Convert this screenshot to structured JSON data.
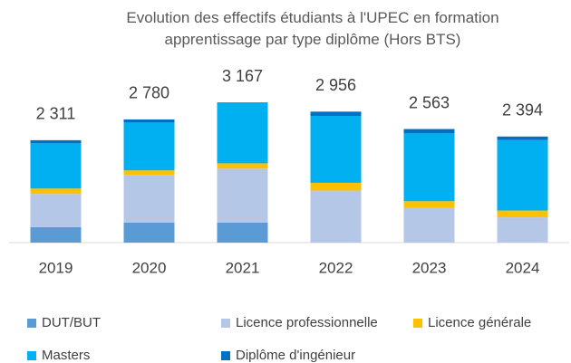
{
  "chart_data": {
    "type": "stacked_bar",
    "title": "Evolution des effectifs étudiants à l'UPEC en formation apprentissage par type diplôme (Hors BTS)",
    "categories": [
      "2019",
      "2020",
      "2021",
      "2022",
      "2023",
      "2024"
    ],
    "series": [
      {
        "name": "DUT/BUT",
        "color": "#5b9bd5",
        "values": [
          350,
          450,
          450,
          0,
          0,
          0
        ]
      },
      {
        "name": "Licence professionnelle",
        "color": "#b4c7e7",
        "values": [
          750,
          1080,
          1220,
          1175,
          780,
          570
        ]
      },
      {
        "name": "Licence générale",
        "color": "#ffc000",
        "values": [
          120,
          100,
          120,
          175,
          155,
          155
        ]
      },
      {
        "name": "Masters",
        "color": "#00b0f0",
        "values": [
          1020,
          1080,
          1377,
          1510,
          1530,
          1590
        ]
      },
      {
        "name": "Diplôme d'ingénieur",
        "color": "#0070c0",
        "values": [
          71,
          70,
          0,
          96,
          98,
          79
        ]
      }
    ],
    "totals": [
      2311,
      2780,
      3167,
      2956,
      2563,
      2394
    ],
    "total_labels": [
      "2 311",
      "2 780",
      "3 167",
      "2 956",
      "2 563",
      "2 394"
    ]
  }
}
